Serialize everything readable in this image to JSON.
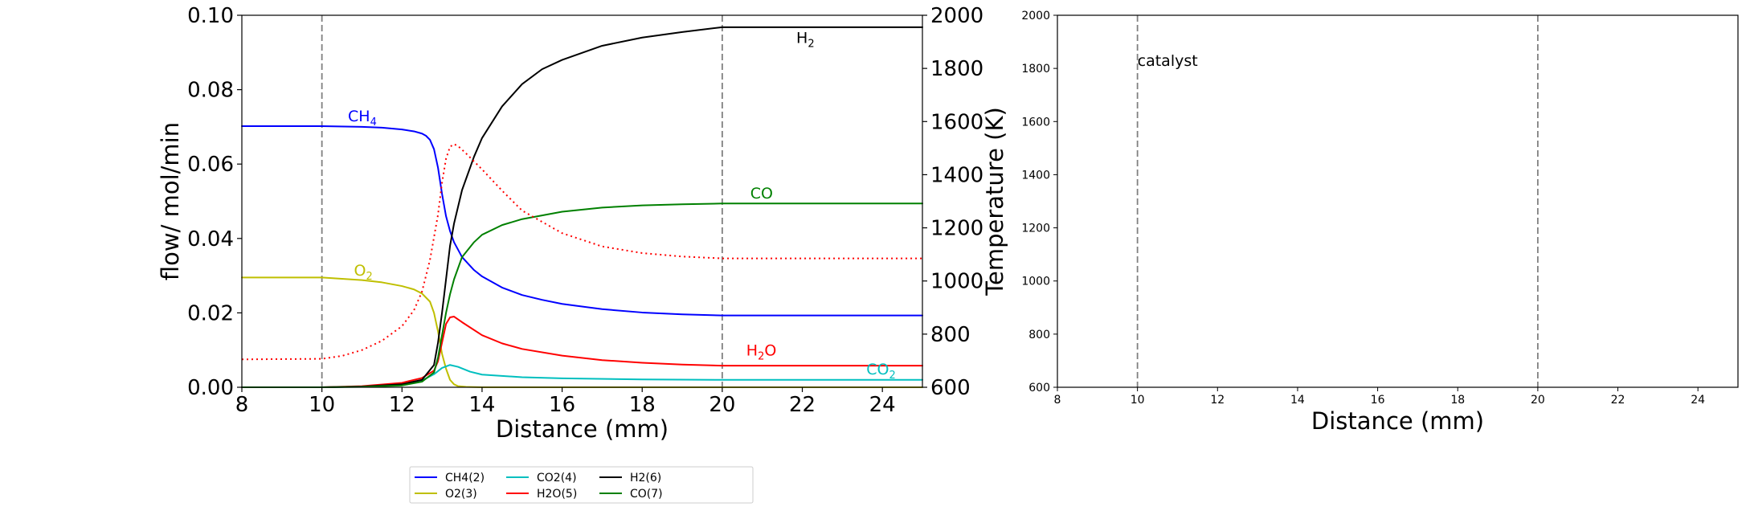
{
  "chart_data": [
    {
      "type": "line",
      "xlabel": "Distance (mm)",
      "ylabel": "flow/ mol/min",
      "y2label": "Temperature (K)",
      "xlim": [
        8,
        25
      ],
      "ylim": [
        0,
        0.1
      ],
      "y2lim": [
        600,
        2000
      ],
      "xticks": [
        "8",
        "10",
        "12",
        "14",
        "16",
        "18",
        "20",
        "22",
        "24"
      ],
      "yticks": [
        "0.00",
        "0.02",
        "0.04",
        "0.06",
        "0.08",
        "0.10"
      ],
      "y2ticks": [
        "600",
        "800",
        "1000",
        "1200",
        "1400",
        "1600",
        "1800",
        "2000"
      ],
      "vlines": [
        10,
        20
      ],
      "grid": false,
      "colors": {
        "CH4": "#0000ff",
        "O2": "#bfbf00",
        "CO2": "#00bfbf",
        "H2O": "#ff0000",
        "H2": "#000000",
        "CO": "#008000",
        "T": "#ff0000",
        "vline": "#808080"
      },
      "series": [
        {
          "name": "CH4(2)",
          "color": "#0000ff",
          "x": [
            8,
            10,
            11,
            11.5,
            12,
            12.3,
            12.5,
            12.6,
            12.7,
            12.8,
            12.9,
            13.0,
            13.1,
            13.2,
            13.3,
            13.5,
            13.8,
            14.0,
            14.5,
            15.0,
            15.5,
            16.0,
            17.0,
            18.0,
            19.0,
            20.0,
            25.0
          ],
          "y": [
            0.0702,
            0.0702,
            0.07,
            0.0698,
            0.0693,
            0.0688,
            0.0682,
            0.0676,
            0.0665,
            0.064,
            0.059,
            0.052,
            0.046,
            0.042,
            0.039,
            0.035,
            0.0315,
            0.0298,
            0.0268,
            0.0248,
            0.0235,
            0.0224,
            0.021,
            0.0201,
            0.0196,
            0.0193,
            0.0193
          ]
        },
        {
          "name": "O2(3)",
          "color": "#bfbf00",
          "x": [
            8,
            10,
            11,
            11.5,
            12,
            12.3,
            12.5,
            12.7,
            12.8,
            12.9,
            13.0,
            13.1,
            13.2,
            13.3,
            13.4,
            13.6,
            14.0,
            25.0
          ],
          "y": [
            0.0295,
            0.0295,
            0.0288,
            0.0282,
            0.0272,
            0.0263,
            0.0252,
            0.023,
            0.02,
            0.015,
            0.009,
            0.005,
            0.002,
            0.0008,
            0.0003,
            0.0001,
            0.0,
            0.0
          ]
        },
        {
          "name": "CO2(4)",
          "color": "#00bfbf",
          "x": [
            8,
            10,
            11,
            12,
            12.5,
            12.8,
            13.0,
            13.2,
            13.4,
            13.7,
            14.0,
            15.0,
            16.0,
            18.0,
            20.0,
            25.0
          ],
          "y": [
            0.0,
            0.0,
            0.0002,
            0.0008,
            0.0018,
            0.0035,
            0.0052,
            0.006,
            0.0055,
            0.0042,
            0.0034,
            0.0027,
            0.0024,
            0.0021,
            0.002,
            0.002
          ]
        },
        {
          "name": "H2O(5)",
          "color": "#ff0000",
          "x": [
            8,
            10,
            11,
            12,
            12.5,
            12.8,
            12.9,
            13.0,
            13.1,
            13.2,
            13.3,
            13.5,
            14.0,
            14.5,
            15.0,
            16.0,
            17.0,
            18.0,
            19.0,
            20.0,
            25.0
          ],
          "y": [
            0.0,
            0.0,
            0.0003,
            0.0012,
            0.0025,
            0.0045,
            0.007,
            0.012,
            0.017,
            0.0188,
            0.019,
            0.0175,
            0.014,
            0.0118,
            0.0103,
            0.0085,
            0.0073,
            0.0066,
            0.0061,
            0.0058,
            0.0058
          ]
        },
        {
          "name": "H2(6)",
          "color": "#000000",
          "x": [
            8,
            10,
            11,
            12,
            12.5,
            12.8,
            12.9,
            13.0,
            13.1,
            13.2,
            13.3,
            13.5,
            13.8,
            14.0,
            14.5,
            15.0,
            15.5,
            16.0,
            17.0,
            18.0,
            19.0,
            20.0,
            25.0
          ],
          "y": [
            0.0,
            0.0,
            0.0002,
            0.0008,
            0.002,
            0.006,
            0.012,
            0.02,
            0.029,
            0.038,
            0.044,
            0.053,
            0.062,
            0.067,
            0.0755,
            0.0815,
            0.0855,
            0.088,
            0.0918,
            0.094,
            0.0955,
            0.0968,
            0.0968
          ]
        },
        {
          "name": "CO(7)",
          "color": "#008000",
          "x": [
            8,
            10,
            11,
            12,
            12.5,
            12.8,
            12.9,
            13.0,
            13.1,
            13.2,
            13.3,
            13.5,
            13.8,
            14.0,
            14.5,
            15.0,
            16.0,
            17.0,
            18.0,
            19.0,
            20.0,
            25.0
          ],
          "y": [
            0.0,
            0.0,
            0.0001,
            0.0005,
            0.0015,
            0.004,
            0.008,
            0.014,
            0.02,
            0.025,
            0.029,
            0.035,
            0.039,
            0.041,
            0.0436,
            0.0452,
            0.0472,
            0.0483,
            0.0489,
            0.0492,
            0.0494,
            0.0494
          ]
        },
        {
          "name": "",
          "color": "#ff0000",
          "dash": "dotted",
          "axis": "y2",
          "x": [
            8,
            10,
            10.5,
            11,
            11.5,
            12,
            12.3,
            12.5,
            12.7,
            12.9,
            13.0,
            13.1,
            13.2,
            13.3,
            13.4,
            13.6,
            14.0,
            14.5,
            15.0,
            16.0,
            17.0,
            18.0,
            19.0,
            20.0,
            25.0
          ],
          "y": [
            705,
            707,
            718,
            740,
            775,
            830,
            890,
            960,
            1080,
            1250,
            1370,
            1460,
            1505,
            1515,
            1508,
            1480,
            1420,
            1340,
            1265,
            1180,
            1130,
            1105,
            1092,
            1085,
            1085
          ]
        }
      ],
      "annotations": [
        {
          "text": "CH",
          "sub": "4",
          "x": 10.65,
          "y": 0.0715,
          "color": "#0000ff"
        },
        {
          "text": "O",
          "sub": "2",
          "x": 10.8,
          "y": 0.03,
          "color": "#bfbf00"
        },
        {
          "text": "H",
          "sub": "2",
          "x": 21.85,
          "y": 0.0925,
          "color": "#000000"
        },
        {
          "text": "CO",
          "sub": "",
          "x": 20.7,
          "y": 0.0508,
          "color": "#008000"
        },
        {
          "text": "H",
          "sub": "2",
          "suffix": "O",
          "x": 20.6,
          "y": 0.0085,
          "color": "#ff0000"
        },
        {
          "text": "CO",
          "sub": "2",
          "x": 23.6,
          "y": 0.0035,
          "color": "#00bfbf"
        }
      ],
      "legend": {
        "placement": "bottom",
        "columns": 4,
        "entries": [
          {
            "label": "CH4(2)",
            "color": "#0000ff"
          },
          {
            "label": "O2(3)",
            "color": "#bfbf00"
          },
          {
            "label": "CO2(4)",
            "color": "#00bfbf"
          },
          {
            "label": "H2O(5)",
            "color": "#ff0000"
          },
          {
            "label": "H2(6)",
            "color": "#000000"
          },
          {
            "label": "CO(7)",
            "color": "#008000"
          }
        ]
      }
    },
    {
      "type": "line",
      "xlabel": "Distance (mm)",
      "xlim": [
        8,
        25
      ],
      "ylim": [
        600,
        2000
      ],
      "xticks": [
        "8",
        "10",
        "12",
        "14",
        "16",
        "18",
        "20",
        "22",
        "24"
      ],
      "yticks": [
        "600",
        "800",
        "1000",
        "1200",
        "1400",
        "1600",
        "1800",
        "2000"
      ],
      "vlines": [
        10,
        20
      ],
      "grid": false,
      "series": [],
      "annotations": [
        {
          "text": "catalyst",
          "x": 10.0,
          "y": 1810,
          "color": "#000000"
        }
      ]
    }
  ]
}
